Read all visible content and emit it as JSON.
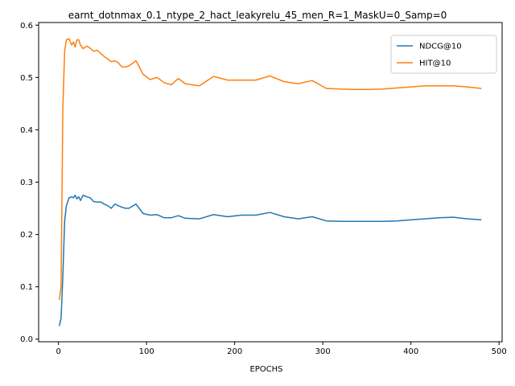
{
  "chart_data": {
    "type": "line",
    "title": "earnt_dotnmax_0.1_ntype_2_hact_leakyrelu_45_men_R=1_MaskU=0_Samp=0",
    "xlabel": "EPOCHS",
    "ylabel": "",
    "xlim": [
      -22.5,
      503.5
    ],
    "ylim": [
      -0.005,
      0.605
    ],
    "xticks": [
      0,
      100,
      200,
      300,
      400,
      500
    ],
    "yticks": [
      0.0,
      0.1,
      0.2,
      0.3,
      0.4,
      0.5,
      0.6
    ],
    "xtick_labels": [
      "0",
      "100",
      "200",
      "300",
      "400",
      "500"
    ],
    "ytick_labels": [
      "0.0",
      "0.1",
      "0.2",
      "0.3",
      "0.4",
      "0.5",
      "0.6"
    ],
    "grid": false,
    "legend_position": "top-right",
    "series": [
      {
        "name": "NDCG@10",
        "color": "#1f77b4",
        "x": [
          1,
          3,
          5,
          7,
          9,
          12,
          15,
          17,
          19,
          21,
          23,
          25,
          28,
          32,
          36,
          40,
          44,
          48,
          52,
          56,
          60,
          64,
          68,
          72,
          76,
          80,
          88,
          96,
          104,
          112,
          120,
          128,
          136,
          144,
          160,
          176,
          192,
          208,
          224,
          240,
          256,
          272,
          288,
          304,
          320,
          336,
          352,
          368,
          384,
          400,
          416,
          432,
          448,
          464,
          480
        ],
        "y": [
          0.025,
          0.04,
          0.12,
          0.225,
          0.255,
          0.27,
          0.272,
          0.27,
          0.275,
          0.268,
          0.272,
          0.265,
          0.275,
          0.272,
          0.27,
          0.263,
          0.262,
          0.262,
          0.258,
          0.255,
          0.25,
          0.258,
          0.255,
          0.252,
          0.25,
          0.25,
          0.258,
          0.24,
          0.237,
          0.238,
          0.232,
          0.232,
          0.236,
          0.231,
          0.23,
          0.238,
          0.234,
          0.237,
          0.237,
          0.242,
          0.234,
          0.23,
          0.234,
          0.226,
          0.225,
          0.225,
          0.225,
          0.225,
          0.226,
          0.228,
          0.23,
          0.232,
          0.233,
          0.23,
          0.228
        ]
      },
      {
        "name": "HIT@10",
        "color": "#ff7f0e",
        "x": [
          1,
          3,
          5,
          7,
          9,
          12,
          15,
          17,
          19,
          21,
          23,
          25,
          28,
          32,
          36,
          40,
          44,
          48,
          52,
          56,
          60,
          64,
          68,
          72,
          76,
          80,
          88,
          96,
          104,
          112,
          120,
          128,
          136,
          144,
          160,
          176,
          192,
          208,
          224,
          240,
          256,
          272,
          288,
          304,
          320,
          336,
          352,
          368,
          384,
          400,
          416,
          432,
          448,
          464,
          480
        ],
        "y": [
          0.075,
          0.1,
          0.44,
          0.55,
          0.572,
          0.574,
          0.562,
          0.568,
          0.558,
          0.572,
          0.572,
          0.562,
          0.555,
          0.56,
          0.556,
          0.55,
          0.552,
          0.546,
          0.54,
          0.535,
          0.53,
          0.532,
          0.528,
          0.52,
          0.52,
          0.522,
          0.532,
          0.506,
          0.496,
          0.5,
          0.49,
          0.486,
          0.498,
          0.488,
          0.484,
          0.502,
          0.495,
          0.495,
          0.495,
          0.503,
          0.492,
          0.488,
          0.494,
          0.479,
          0.478,
          0.477,
          0.477,
          0.478,
          0.48,
          0.482,
          0.484,
          0.484,
          0.484,
          0.482,
          0.479
        ]
      }
    ]
  }
}
